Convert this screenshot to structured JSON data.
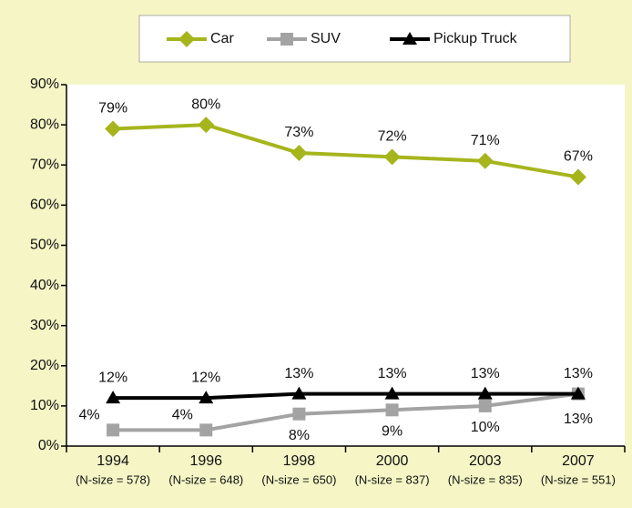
{
  "chart_data": {
    "type": "line",
    "categories": [
      "1994",
      "1996",
      "1998",
      "2000",
      "2003",
      "2007"
    ],
    "category_sublabels": [
      "(N-size = 578)",
      "(N-size = 648)",
      "(N-size = 650)",
      "(N-size = 837)",
      "(N-size = 835)",
      "(N-size = 551)"
    ],
    "series": [
      {
        "name": "Car",
        "color": "#a6b51c",
        "marker": "diamond",
        "values": [
          79,
          80,
          73,
          72,
          71,
          67
        ],
        "value_labels": [
          "79%",
          "80%",
          "73%",
          "72%",
          "71%",
          "67%"
        ]
      },
      {
        "name": "SUV",
        "color": "#a3a3a3",
        "marker": "square",
        "values": [
          4,
          4,
          8,
          9,
          10,
          13
        ],
        "value_labels": [
          "4%",
          "4%",
          "8%",
          "9%",
          "10%",
          "13%"
        ]
      },
      {
        "name": "Pickup Truck",
        "color": "#000000",
        "marker": "triangle",
        "values": [
          12,
          12,
          13,
          13,
          13,
          13
        ],
        "value_labels": [
          "12%",
          "12%",
          "13%",
          "13%",
          "13%",
          "13%"
        ]
      }
    ],
    "ylim": [
      0,
      90
    ],
    "yticks": [
      {
        "value": 0,
        "label": "0%"
      },
      {
        "value": 10,
        "label": "10%"
      },
      {
        "value": 20,
        "label": "20%"
      },
      {
        "value": 30,
        "label": "30%"
      },
      {
        "value": 40,
        "label": "40%"
      },
      {
        "value": 50,
        "label": "50%"
      },
      {
        "value": 60,
        "label": "60%"
      },
      {
        "value": 70,
        "label": "70%"
      },
      {
        "value": 80,
        "label": "80%"
      },
      {
        "value": 90,
        "label": "90%"
      }
    ],
    "legend": "top"
  }
}
